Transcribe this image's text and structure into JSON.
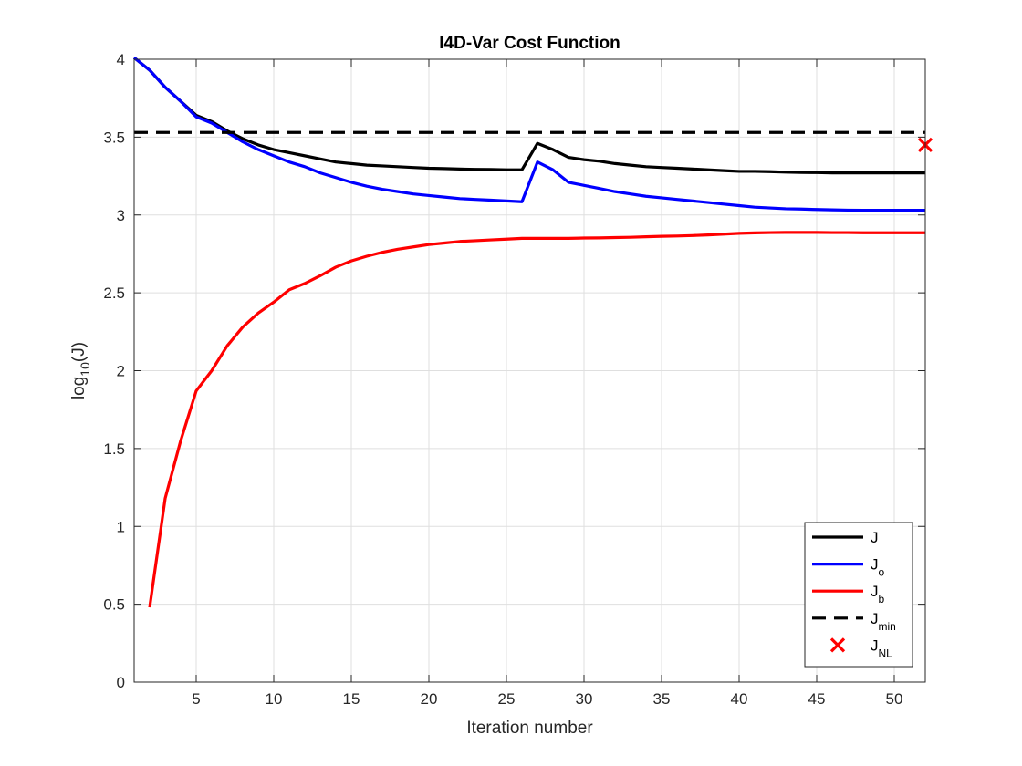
{
  "chart_data": {
    "type": "line",
    "title": "I4D-Var Cost Function",
    "xlabel": "Iteration number",
    "ylabel_base": "log",
    "ylabel_sub": "10",
    "ylabel_tail": "(J)",
    "xlim": [
      1,
      52
    ],
    "ylim": [
      0,
      4
    ],
    "xticks": [
      5,
      10,
      15,
      20,
      25,
      30,
      35,
      40,
      45,
      50
    ],
    "xtick_labels": [
      "5",
      "10",
      "15",
      "20",
      "25",
      "30",
      "35",
      "40",
      "45",
      "50"
    ],
    "yticks": [
      0,
      0.5,
      1,
      1.5,
      2,
      2.5,
      3,
      3.5,
      4
    ],
    "ytick_labels": [
      "0",
      "0.5",
      "1",
      "1.5",
      "2",
      "2.5",
      "3",
      "3.5",
      "4"
    ],
    "grid": true,
    "legend_position": "bottom-right",
    "series": [
      {
        "name_base": "J",
        "name_sub": "",
        "color": "#000000",
        "style": "solid",
        "x": [
          1,
          2,
          3,
          4,
          5,
          6,
          7,
          8,
          9,
          10,
          11,
          12,
          13,
          14,
          15,
          16,
          17,
          18,
          19,
          20,
          21,
          22,
          23,
          24,
          25,
          26,
          27,
          28,
          29,
          30,
          31,
          32,
          33,
          34,
          35,
          36,
          37,
          38,
          39,
          40,
          41,
          42,
          43,
          44,
          45,
          46,
          47,
          48,
          49,
          50,
          51,
          52
        ],
        "values": [
          4.01,
          3.93,
          3.82,
          3.73,
          3.64,
          3.6,
          3.54,
          3.49,
          3.45,
          3.42,
          3.4,
          3.38,
          3.36,
          3.34,
          3.33,
          3.32,
          3.315,
          3.31,
          3.305,
          3.3,
          3.298,
          3.295,
          3.293,
          3.292,
          3.29,
          3.29,
          3.46,
          3.42,
          3.37,
          3.355,
          3.345,
          3.33,
          3.32,
          3.31,
          3.305,
          3.3,
          3.295,
          3.29,
          3.285,
          3.28,
          3.28,
          3.278,
          3.275,
          3.273,
          3.272,
          3.27,
          3.27,
          3.27,
          3.27,
          3.27,
          3.27,
          3.27
        ]
      },
      {
        "name_base": "J",
        "name_sub": "o",
        "color": "#0000ff",
        "style": "solid",
        "x": [
          1,
          2,
          3,
          4,
          5,
          6,
          7,
          8,
          9,
          10,
          11,
          12,
          13,
          14,
          15,
          16,
          17,
          18,
          19,
          20,
          21,
          22,
          23,
          24,
          25,
          26,
          27,
          28,
          29,
          30,
          31,
          32,
          33,
          34,
          35,
          36,
          37,
          38,
          39,
          40,
          41,
          42,
          43,
          44,
          45,
          46,
          47,
          48,
          49,
          50,
          51,
          52
        ],
        "values": [
          4.01,
          3.93,
          3.82,
          3.73,
          3.63,
          3.59,
          3.53,
          3.47,
          3.42,
          3.38,
          3.34,
          3.31,
          3.27,
          3.24,
          3.21,
          3.185,
          3.165,
          3.15,
          3.135,
          3.125,
          3.115,
          3.105,
          3.1,
          3.095,
          3.09,
          3.085,
          3.34,
          3.29,
          3.21,
          3.19,
          3.17,
          3.15,
          3.135,
          3.12,
          3.11,
          3.1,
          3.09,
          3.08,
          3.07,
          3.06,
          3.05,
          3.045,
          3.04,
          3.038,
          3.035,
          3.033,
          3.031,
          3.03,
          3.03,
          3.03,
          3.03,
          3.03
        ]
      },
      {
        "name_base": "J",
        "name_sub": "b",
        "color": "#ff0000",
        "style": "solid",
        "x": [
          2,
          3,
          4,
          5,
          6,
          7,
          8,
          9,
          10,
          11,
          12,
          13,
          14,
          15,
          16,
          17,
          18,
          19,
          20,
          21,
          22,
          23,
          24,
          25,
          26,
          27,
          28,
          29,
          30,
          31,
          32,
          33,
          34,
          35,
          36,
          37,
          38,
          39,
          40,
          41,
          42,
          43,
          44,
          45,
          46,
          47,
          48,
          49,
          50,
          51,
          52
        ],
        "values": [
          0.48,
          1.18,
          1.55,
          1.87,
          2.0,
          2.16,
          2.28,
          2.37,
          2.44,
          2.52,
          2.56,
          2.61,
          2.665,
          2.705,
          2.735,
          2.76,
          2.78,
          2.795,
          2.81,
          2.82,
          2.83,
          2.835,
          2.84,
          2.845,
          2.85,
          2.85,
          2.85,
          2.85,
          2.852,
          2.853,
          2.855,
          2.857,
          2.86,
          2.863,
          2.865,
          2.868,
          2.872,
          2.877,
          2.882,
          2.885,
          2.887,
          2.888,
          2.888,
          2.888,
          2.887,
          2.887,
          2.886,
          2.886,
          2.886,
          2.886,
          2.886
        ]
      },
      {
        "name_base": "J",
        "name_sub": "min",
        "color": "#000000",
        "style": "dashed",
        "x": [
          1,
          52
        ],
        "values": [
          3.53,
          3.53
        ]
      }
    ],
    "markers": [
      {
        "name_base": "J",
        "name_sub": "NL",
        "color": "#ff0000",
        "shape": "x",
        "x": 52,
        "y": 3.45
      }
    ]
  }
}
